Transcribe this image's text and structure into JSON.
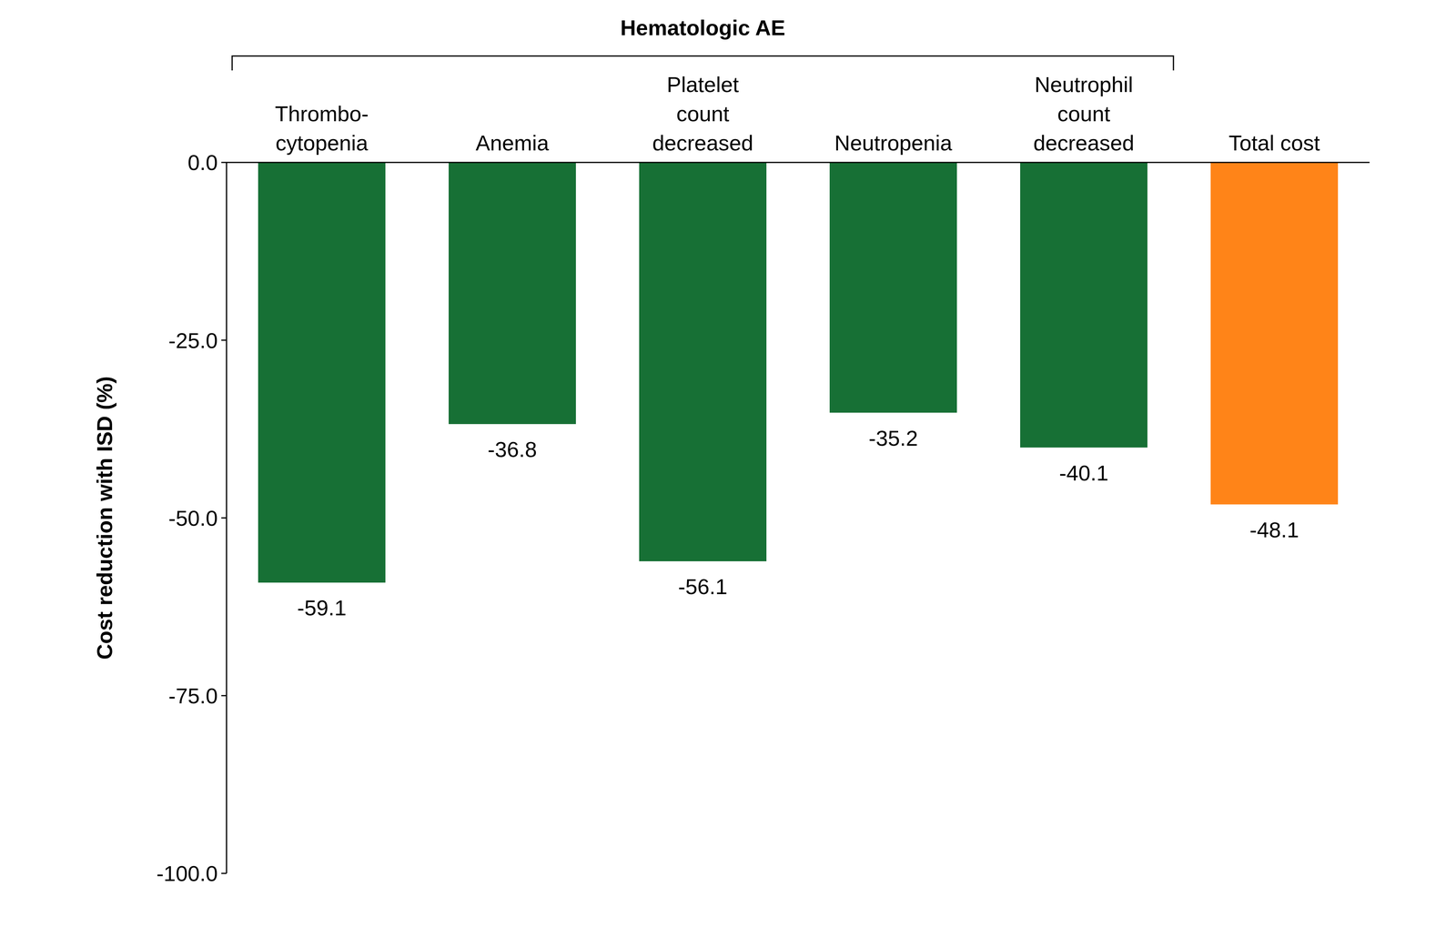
{
  "chart_data": {
    "type": "bar",
    "y_label": "Cost reduction with ISD (%)",
    "categories": [
      "Thrombo-\ncytopenia",
      "Anemia",
      "Platelet\ncount\ndecreased",
      "Neutropenia",
      "Neutrophil\ncount\ndecreased",
      "Total cost"
    ],
    "values": [
      -59.1,
      -36.8,
      -56.1,
      -35.2,
      -40.1,
      -48.1
    ],
    "colors": [
      "#177035",
      "#177035",
      "#177035",
      "#177035",
      "#177035",
      "#ff8418"
    ],
    "ylim": [
      -100,
      0
    ],
    "yticks": [
      {
        "value": 0,
        "label": "0.0"
      },
      {
        "value": -25,
        "label": "-25.0"
      },
      {
        "value": -50,
        "label": "-50.0"
      },
      {
        "value": -75,
        "label": "-75.0"
      },
      {
        "value": -100,
        "label": "-100.0"
      }
    ],
    "grid": false,
    "data_labels": true,
    "annotations": [
      {
        "text": "Hematologic AE",
        "span": [
          "Thrombo-\ncytopenia",
          "Neutrophil\ncount\ndecreased"
        ]
      }
    ]
  }
}
